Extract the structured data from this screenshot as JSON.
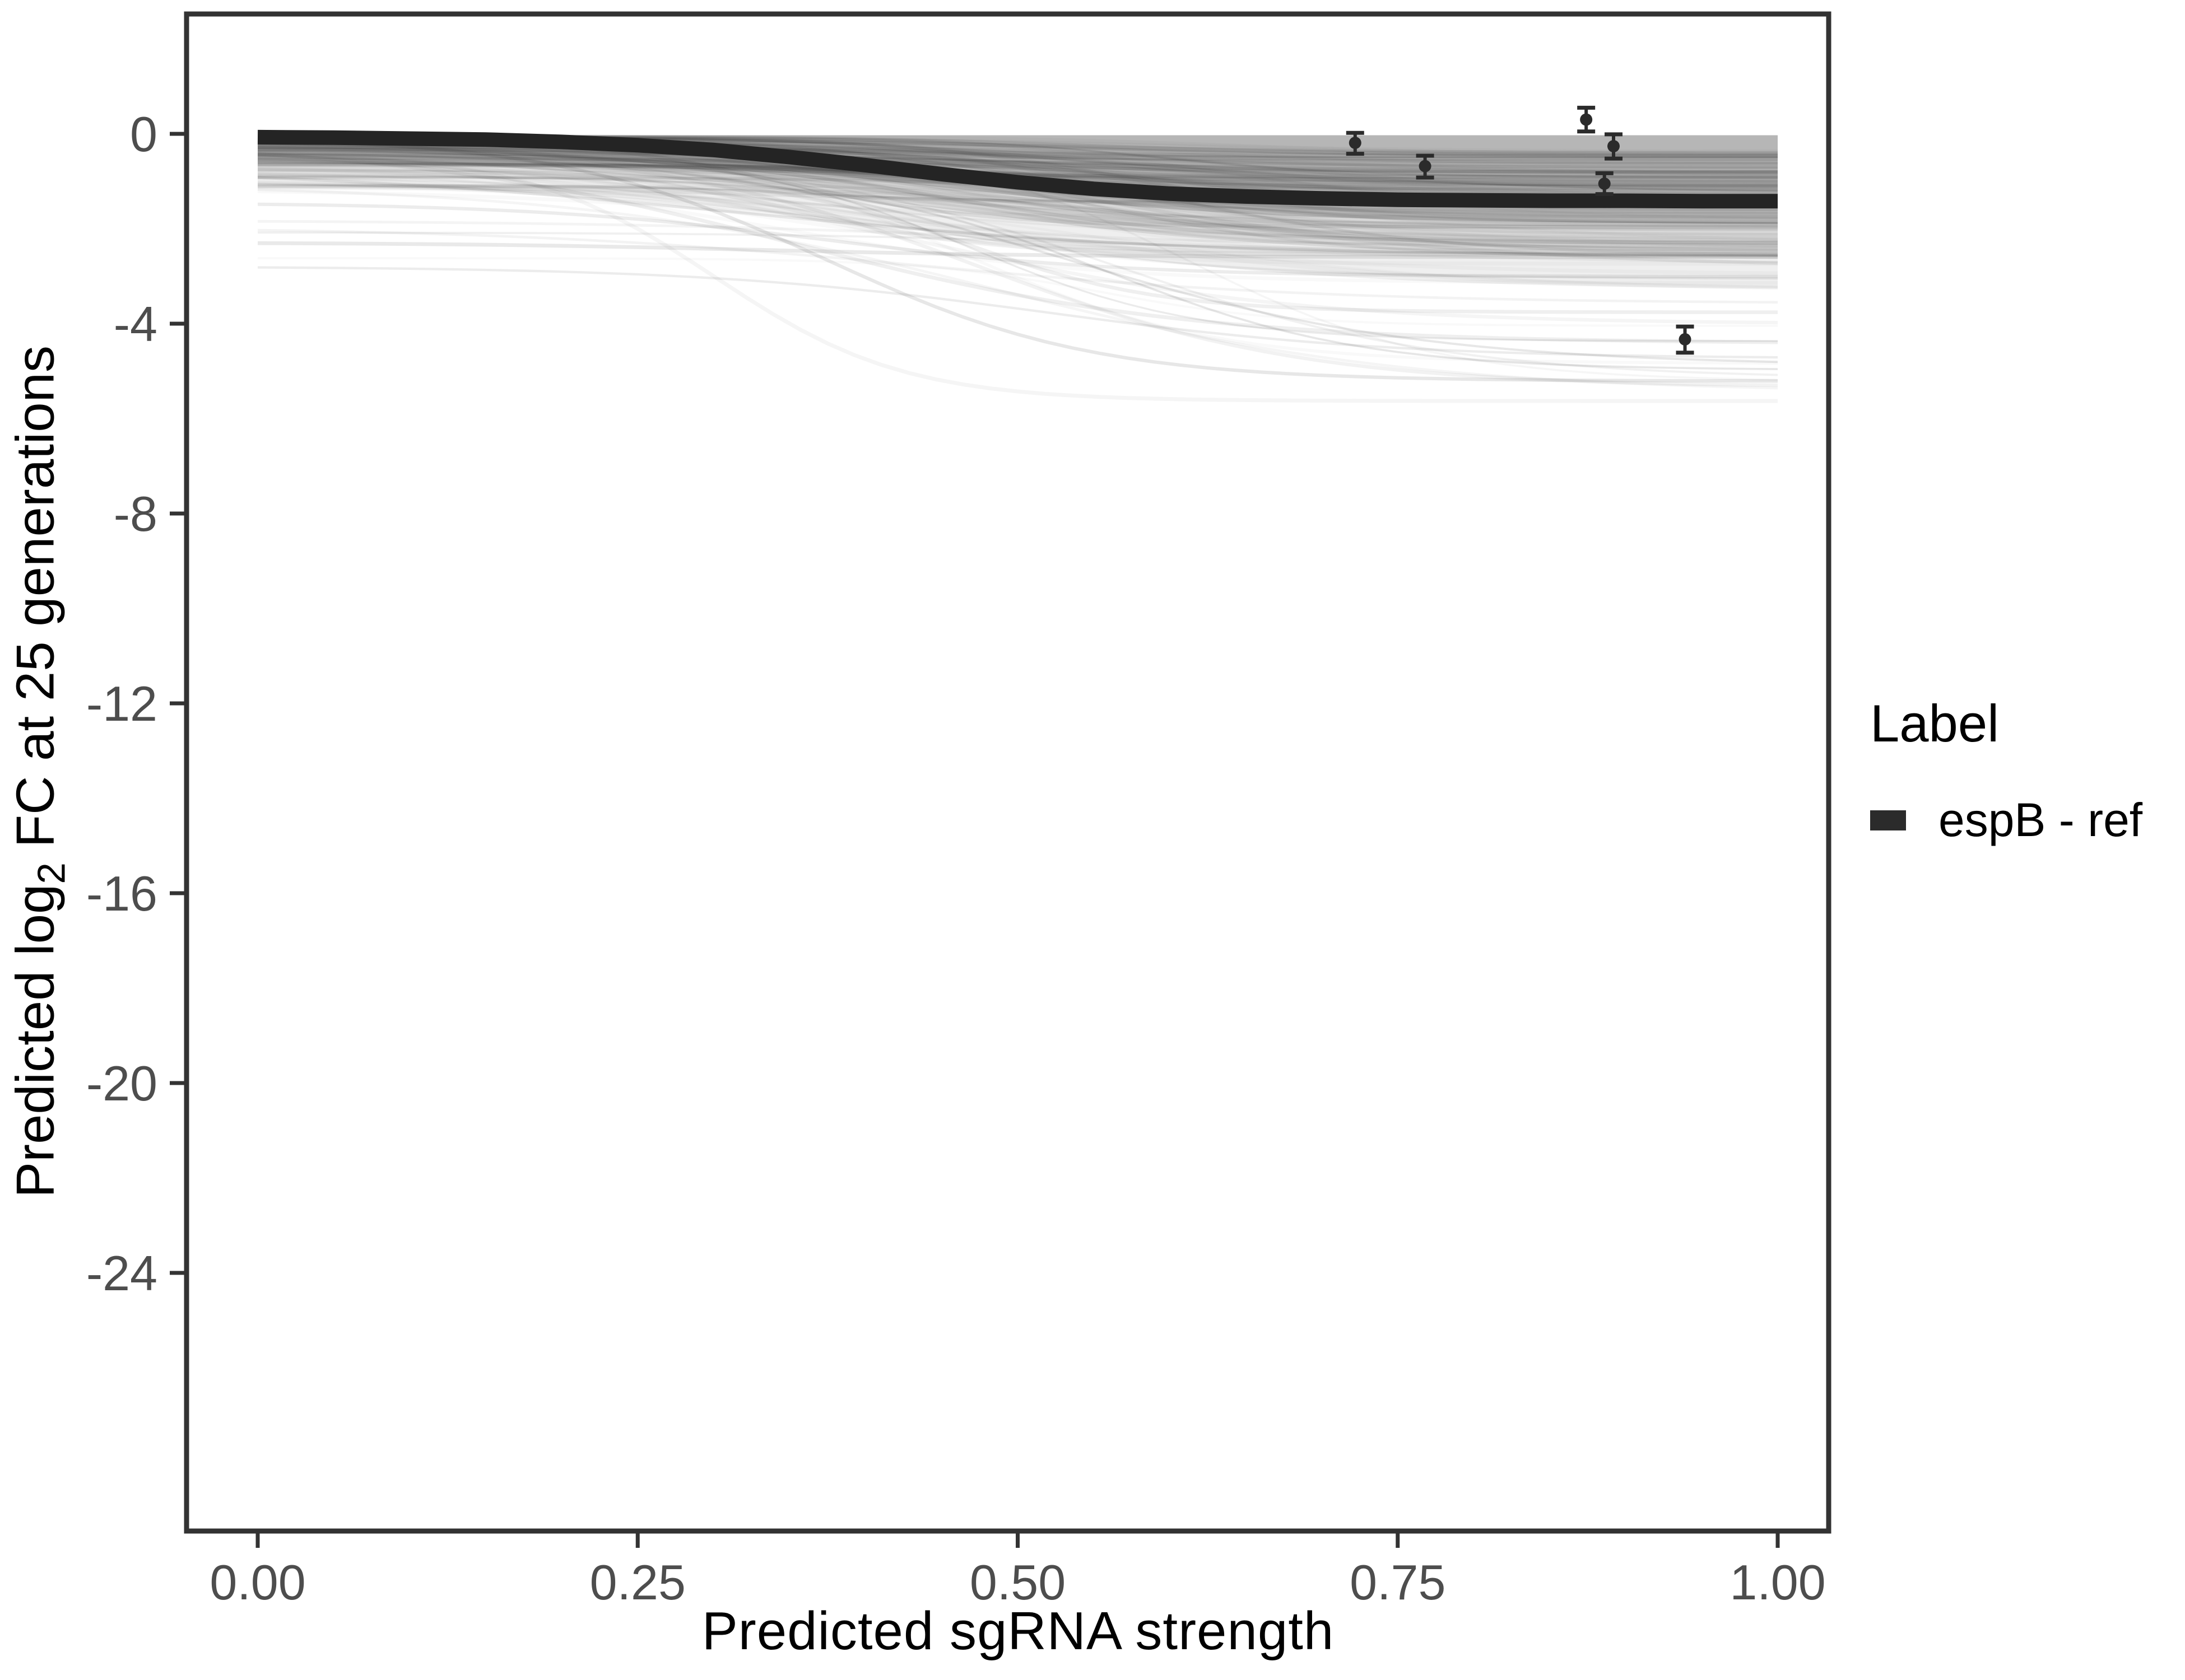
{
  "page": {
    "background": "#ffffff"
  },
  "chart_data": {
    "type": "line",
    "title": "",
    "xlabel": "Predicted sgRNA strength",
    "ylabel": {
      "pre": "Predicted  log",
      "sub": "2",
      "post": " FC at 25 generations"
    },
    "xlim": [
      -0.047,
      1.034
    ],
    "ylim": [
      -29.4,
      2.5
    ],
    "grid": false,
    "panel": {
      "border_color": "#333333",
      "background": "#ffffff"
    },
    "axis_text_color": "#4d4d4d",
    "x_ticks": [
      {
        "value": 0.0,
        "label": "0.00"
      },
      {
        "value": 0.25,
        "label": "0.25"
      },
      {
        "value": 0.5,
        "label": "0.50"
      },
      {
        "value": 0.75,
        "label": "0.75"
      },
      {
        "value": 1.0,
        "label": "1.00"
      }
    ],
    "y_ticks": [
      {
        "value": 0,
        "label": "0"
      },
      {
        "value": -4,
        "label": "-4"
      },
      {
        "value": -8,
        "label": "-8"
      },
      {
        "value": -12,
        "label": "-12"
      },
      {
        "value": -16,
        "label": "-16"
      },
      {
        "value": -20,
        "label": "-20"
      },
      {
        "value": -24,
        "label": "-24"
      }
    ],
    "legend": {
      "title": "Label",
      "position": "right",
      "entries": [
        {
          "label": "espB - ref",
          "color": "#2b2b2b",
          "swatch": "thick-line"
        }
      ]
    },
    "series": [
      {
        "name": "espB - ref",
        "role": "highlight",
        "color": "#242424",
        "stroke_width": 26,
        "points": [
          [
            0.0,
            -0.07
          ],
          [
            0.05,
            -0.08
          ],
          [
            0.1,
            -0.1
          ],
          [
            0.15,
            -0.12
          ],
          [
            0.2,
            -0.17
          ],
          [
            0.25,
            -0.24
          ],
          [
            0.3,
            -0.34
          ],
          [
            0.35,
            -0.49
          ],
          [
            0.4,
            -0.66
          ],
          [
            0.45,
            -0.85
          ],
          [
            0.5,
            -1.02
          ],
          [
            0.55,
            -1.16
          ],
          [
            0.6,
            -1.26
          ],
          [
            0.65,
            -1.32
          ],
          [
            0.7,
            -1.36
          ],
          [
            0.75,
            -1.39
          ],
          [
            0.8,
            -1.4
          ],
          [
            0.85,
            -1.41
          ],
          [
            0.9,
            -1.41
          ],
          [
            0.95,
            -1.42
          ],
          [
            1.0,
            -1.42
          ]
        ]
      }
    ],
    "error_points": {
      "color": "#2b2b2b",
      "items": [
        {
          "x": 0.722,
          "y": -0.19,
          "ymin": -0.42,
          "ymax": 0.02
        },
        {
          "x": 0.768,
          "y": -0.68,
          "ymin": -0.92,
          "ymax": -0.46
        },
        {
          "x": 0.874,
          "y": 0.3,
          "ymin": 0.05,
          "ymax": 0.55
        },
        {
          "x": 0.892,
          "y": -0.26,
          "ymin": -0.52,
          "ymax": -0.01
        },
        {
          "x": 0.886,
          "y": -1.05,
          "ymin": -1.27,
          "ymax": -0.83
        },
        {
          "x": 0.939,
          "y": -4.33,
          "ymin": -4.61,
          "ymax": -4.06
        }
      ]
    },
    "background_ensemble": {
      "description": "ensemble of predicted sgRNA dose-response curves, gray translucent",
      "x_range": [
        0,
        1
      ],
      "curve_count": 150,
      "seed": 11,
      "start_range": [
        -0.04,
        -2.9
      ],
      "end_range": [
        -0.4,
        -6.4
      ],
      "band_layers": [
        {
          "top": -0.03,
          "start": -0.35,
          "end": -1.9,
          "mid": 0.45,
          "scale": 0.11,
          "fill": "#a9a9a9",
          "opacity": 0.62
        },
        {
          "top": -0.03,
          "start": -0.55,
          "end": -2.6,
          "mid": 0.45,
          "scale": 0.12,
          "fill": "#9b9b9b",
          "opacity": 0.28
        },
        {
          "top": -0.03,
          "start": -1.0,
          "end": -3.3,
          "mid": 0.46,
          "scale": 0.13,
          "fill": "#9b9b9b",
          "opacity": 0.16
        }
      ]
    }
  }
}
